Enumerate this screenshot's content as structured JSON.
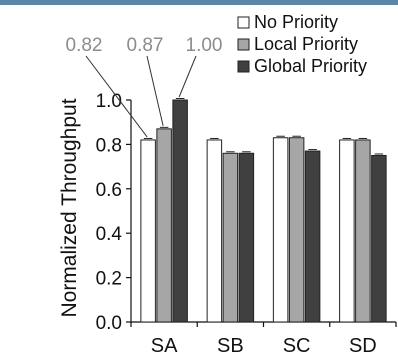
{
  "chart_data": {
    "type": "bar",
    "categories": [
      "SA",
      "SB",
      "SC",
      "SD"
    ],
    "series": [
      {
        "name": "No Priority",
        "values": [
          0.82,
          0.82,
          0.83,
          0.82
        ],
        "color": "#ffffff"
      },
      {
        "name": "Local Priority",
        "values": [
          0.87,
          0.76,
          0.83,
          0.82
        ],
        "color": "#a6a6a6"
      },
      {
        "name": "Global Priority",
        "values": [
          1.0,
          0.76,
          0.77,
          0.75
        ],
        "color": "#404040"
      }
    ],
    "ylabel": "Normalized Throughput",
    "ylim": [
      0,
      1.0
    ],
    "yticks": [
      "0.0",
      "0.2",
      "0.4",
      "0.6",
      "0.8",
      "1.0"
    ],
    "annotations": [
      "0.82",
      "0.87",
      "1.00"
    ],
    "legend_position": "top-right",
    "grid": false,
    "error_bars": true
  }
}
